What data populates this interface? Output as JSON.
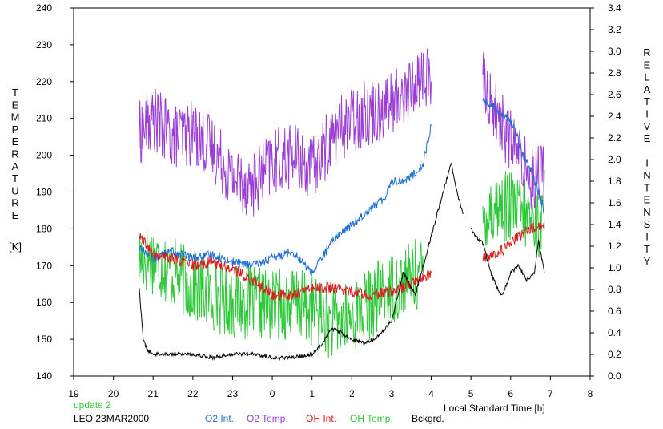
{
  "chart_data": {
    "type": "line",
    "xlabel": "Local Standard Time [h]",
    "ylabel_left": "TEMPERATURE",
    "ylabel_left_unit": "[K]",
    "ylabel_right": "RELATIVE INTENSITY",
    "xlim": [
      19,
      8
    ],
    "x_ticks": [
      "19",
      "20",
      "21",
      "22",
      "23",
      "0",
      "1",
      "2",
      "3",
      "4",
      "5",
      "6",
      "7",
      "8"
    ],
    "ylim_left": [
      140,
      240
    ],
    "y_left_ticks": [
      "240",
      "230",
      "220",
      "210",
      "200",
      "190",
      "180",
      "170",
      "160",
      "150",
      "140"
    ],
    "ylim_right": [
      0.0,
      3.4
    ],
    "y_right_ticks": [
      "3.4",
      "3.2",
      "3.0",
      "2.8",
      "2.6",
      "2.4",
      "2.2",
      "2.0",
      "1.8",
      "1.6",
      "1.4",
      "1.2",
      "1.0",
      "0.8",
      "0.6",
      "0.4",
      "0.2",
      "0.0"
    ],
    "grid": false,
    "legend_placement": "bottom",
    "update_text": "update 2",
    "station_text": "LEO 23MAR2000",
    "series": [
      {
        "name": "O2 Int.",
        "color": "#1e6fd2",
        "axis": "left",
        "x": [
          20.65,
          21.0,
          21.5,
          22.0,
          22.5,
          23.0,
          23.5,
          24.0,
          24.5,
          25.0,
          25.3,
          25.6,
          26.0,
          26.4,
          26.8,
          27.0,
          27.3,
          27.6,
          27.8,
          28.0,
          29.3,
          29.6,
          29.9,
          30.1,
          30.3,
          30.5,
          30.7,
          30.85
        ],
        "y": [
          175,
          172,
          174,
          172,
          173,
          171,
          170,
          172,
          174,
          168,
          173,
          178,
          181,
          185,
          188,
          193,
          193,
          195,
          198,
          208,
          215,
          213,
          210,
          208,
          200,
          196,
          190,
          185
        ]
      },
      {
        "name": "O2 Temp.",
        "color": "#9b3fd4",
        "axis": "left",
        "x": [
          20.65,
          21.0,
          21.5,
          22.0,
          22.5,
          23.0,
          23.5,
          24.0,
          24.5,
          25.0,
          25.5,
          26.0,
          26.5,
          27.0,
          27.5,
          27.8,
          28.0,
          29.3,
          29.6,
          29.9,
          30.2,
          30.5,
          30.85
        ],
        "y": [
          206,
          210,
          205,
          206,
          202,
          194,
          192,
          198,
          200,
          196,
          205,
          210,
          212,
          214,
          218,
          222,
          220,
          220,
          212,
          206,
          200,
          194,
          196
        ]
      },
      {
        "name": "OH Int.",
        "color": "#d81e1e",
        "axis": "left",
        "x": [
          20.65,
          21.0,
          21.5,
          22.0,
          22.5,
          23.0,
          23.5,
          24.0,
          24.5,
          25.0,
          25.5,
          26.0,
          26.5,
          27.0,
          27.5,
          28.0,
          29.3,
          29.6,
          29.9,
          30.2,
          30.5,
          30.85
        ],
        "y": [
          178,
          173,
          172,
          170,
          171,
          169,
          166,
          162,
          162,
          164,
          164,
          163,
          162,
          163,
          165,
          168,
          172,
          173,
          175,
          178,
          180,
          181
        ]
      },
      {
        "name": "OH Temp.",
        "color": "#2ec83a",
        "axis": "left",
        "x": [
          20.65,
          21.0,
          21.5,
          22.0,
          22.5,
          23.0,
          23.5,
          24.0,
          24.5,
          25.0,
          25.5,
          26.0,
          26.5,
          27.0,
          27.5,
          27.8,
          29.3,
          29.6,
          29.9,
          30.2,
          30.5,
          30.85
        ],
        "y": [
          172,
          172,
          168,
          164,
          162,
          160,
          160,
          159,
          160,
          158,
          154,
          156,
          160,
          164,
          167,
          168,
          184,
          186,
          186,
          185,
          183,
          180
        ]
      },
      {
        "name": "Bckgrd.",
        "color": "#000000",
        "axis": "left",
        "x": [
          20.65,
          20.75,
          20.85,
          21.0,
          21.5,
          22.0,
          22.5,
          23.0,
          23.5,
          24.0,
          24.5,
          25.0,
          25.2,
          25.5,
          25.7,
          26.0,
          26.3,
          26.6,
          27.0,
          27.3,
          27.6,
          27.8,
          28.0,
          28.3,
          28.5,
          28.65,
          28.8,
          29.0,
          29.2,
          29.3,
          29.5,
          29.7,
          29.8,
          30.0,
          30.2,
          30.4,
          30.6,
          30.7,
          30.85
        ],
        "y": [
          164,
          150,
          147,
          146,
          146,
          146,
          145,
          146,
          146,
          145,
          145,
          146,
          148,
          153,
          152,
          150,
          149,
          150,
          155,
          168,
          162,
          170,
          178,
          190,
          198,
          190,
          184,
          180,
          177,
          176,
          168,
          163,
          162,
          168,
          170,
          166,
          168,
          177,
          168
        ]
      }
    ]
  }
}
